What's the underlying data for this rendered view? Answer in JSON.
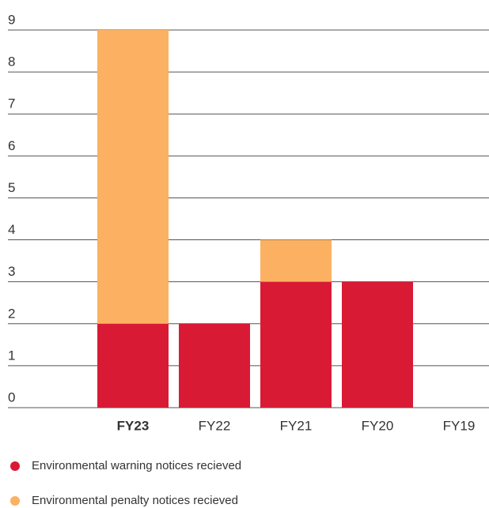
{
  "chart_data": {
    "type": "stacked_bar",
    "categories": [
      "FY23",
      "FY22",
      "FY21",
      "FY20",
      "FY19"
    ],
    "series": [
      {
        "name": "Environmental warning notices recieved",
        "color": "#d91a35",
        "values": [
          2,
          2,
          3,
          3,
          0
        ]
      },
      {
        "name": "Environmental penalty notices recieved",
        "color": "#fbb161",
        "values": [
          7,
          0,
          1,
          0,
          0
        ]
      }
    ],
    "ylim": [
      0,
      9
    ],
    "yticks": [
      0,
      1,
      2,
      3,
      4,
      5,
      6,
      7,
      8,
      9
    ],
    "grid": true,
    "legend": "bottom"
  }
}
